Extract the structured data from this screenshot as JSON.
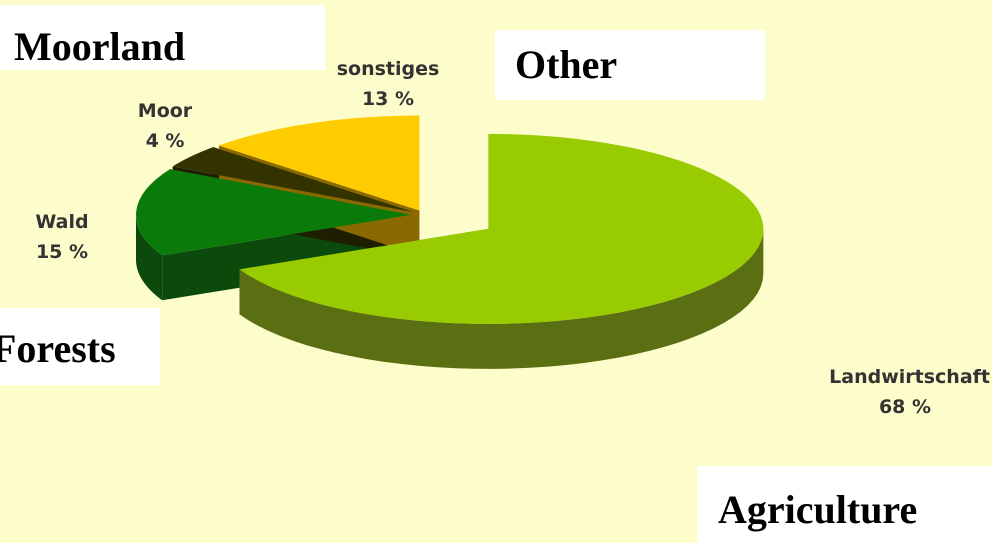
{
  "chart_data": {
    "type": "pie3d",
    "categories": [
      "Landwirtschaft",
      "Wald",
      "Moor",
      "sonstiges"
    ],
    "values": [
      68,
      15,
      4,
      13
    ],
    "value_labels": [
      "68 %",
      "15 %",
      "4 %",
      "13 %"
    ],
    "colors": [
      "#99cc00",
      "#0a7a0a",
      "#333300",
      "#ffcc00"
    ],
    "side_colors": [
      "#5a6e12",
      "#0b4a0b",
      "#1e1e00",
      "#8a6a00"
    ],
    "annotations": [
      "Moorland",
      "Other",
      "Forests",
      "Agriculture"
    ]
  }
}
